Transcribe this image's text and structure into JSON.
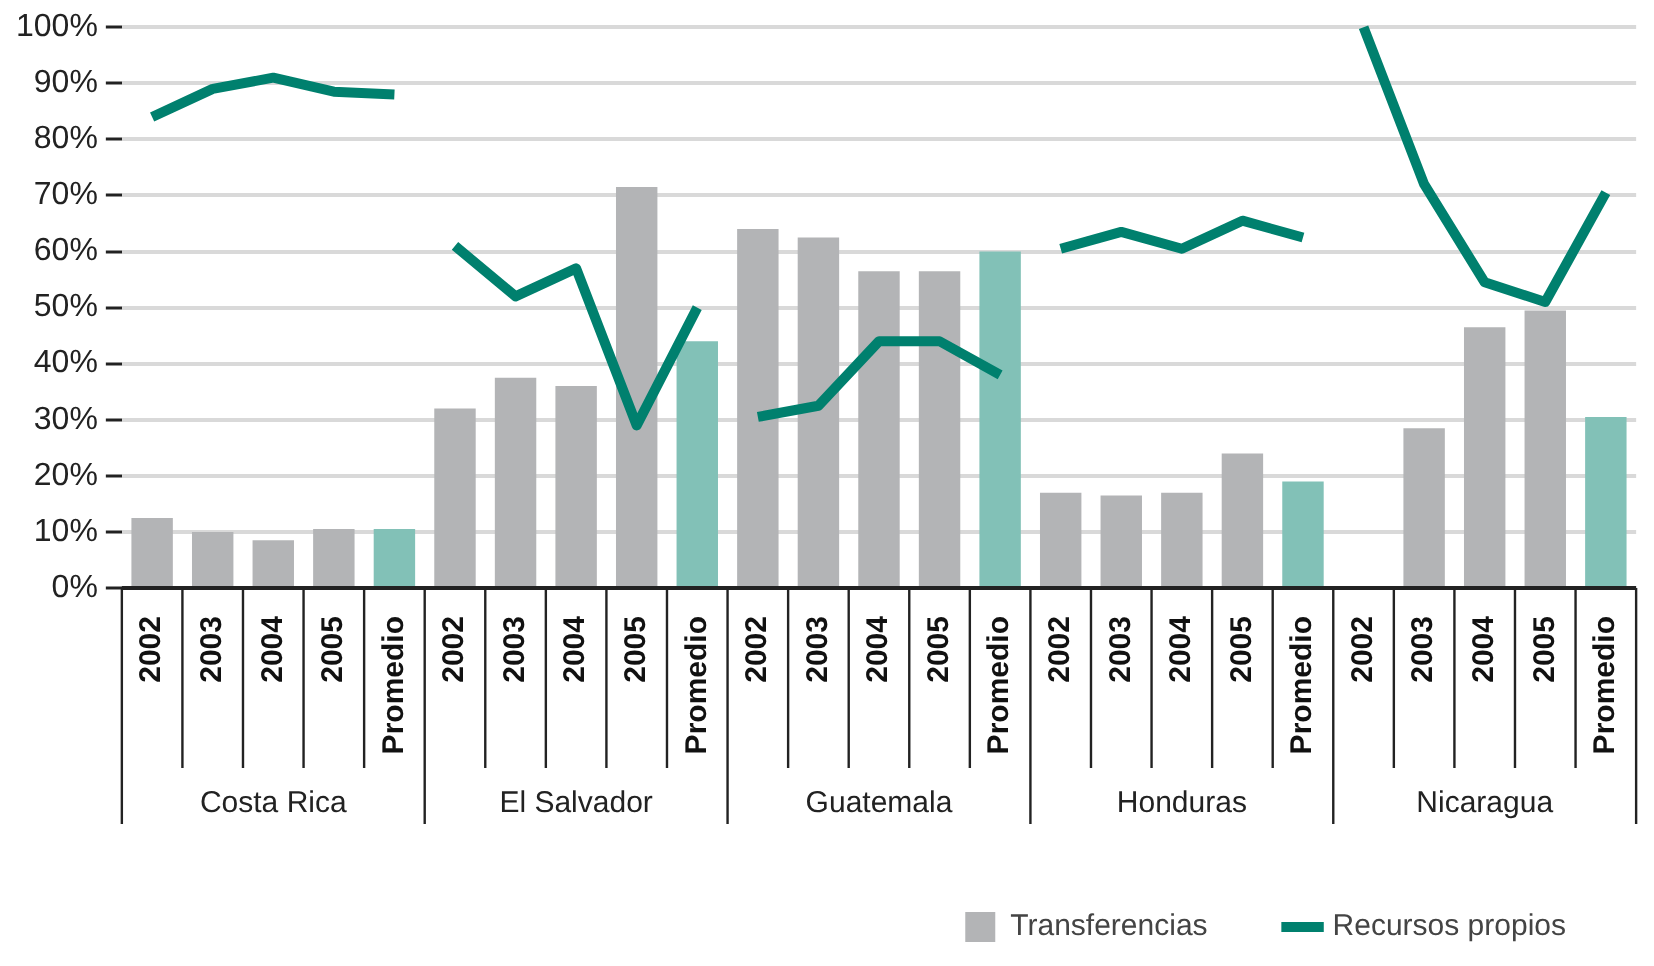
{
  "chart_data": {
    "type": "bar",
    "categories": [
      "2002",
      "2003",
      "2004",
      "2005",
      "Promedio",
      "2002",
      "2003",
      "2004",
      "2005",
      "Promedio",
      "2002",
      "2003",
      "2004",
      "2005",
      "Promedio",
      "2002",
      "2003",
      "2004",
      "2005",
      "Promedio",
      "2002",
      "2003",
      "2004",
      "2005",
      "Promedio"
    ],
    "annotations": [
      "Costa Rica",
      "El Salvador",
      "Guatemala",
      "Honduras",
      "Nicaragua"
    ],
    "series": [
      {
        "name": "Transferencias",
        "color": "#b3b4b6",
        "colors": [
          "#b3b4b6",
          "#b3b4b6",
          "#b3b4b6",
          "#b3b4b6",
          "#82c1b7",
          "#b3b4b6",
          "#b3b4b6",
          "#b3b4b6",
          "#b3b4b6",
          "#82c1b7",
          "#b3b4b6",
          "#b3b4b6",
          "#b3b4b6",
          "#b3b4b6",
          "#82c1b7",
          "#b3b4b6",
          "#b3b4b6",
          "#b3b4b6",
          "#b3b4b6",
          "#82c1b7",
          "#b3b4b6",
          "#b3b4b6",
          "#b3b4b6",
          "#b3b4b6",
          "#82c1b7"
        ],
        "values": [
          12.5,
          10,
          8.5,
          10.5,
          10.5,
          32,
          37.5,
          36,
          71.5,
          44,
          64,
          62.5,
          56.5,
          56.5,
          60,
          17,
          16.5,
          17,
          24,
          19,
          null,
          28.5,
          46.5,
          49.5,
          30.5
        ]
      },
      {
        "name": "Recursos propios",
        "type": "line",
        "color": "#00806e",
        "values": [
          84,
          89,
          91,
          88.5,
          88,
          null,
          null,
          null,
          null,
          null,
          null,
          null,
          null,
          null,
          null,
          null,
          null,
          null,
          null,
          null,
          null,
          null,
          null,
          null,
          null
        ]
      },
      {
        "type": "line",
        "color": "#00806e",
        "values": [
          null,
          null,
          null,
          null,
          null,
          61,
          52,
          57,
          29,
          50,
          null,
          null,
          null,
          null,
          null,
          null,
          null,
          null,
          null,
          null,
          null,
          null,
          null,
          null,
          null
        ]
      },
      {
        "type": "line",
        "color": "#00806e",
        "values": [
          null,
          null,
          null,
          null,
          null,
          null,
          null,
          null,
          null,
          null,
          30.5,
          32.5,
          44,
          44,
          38,
          null,
          null,
          null,
          null,
          null,
          null,
          null,
          null,
          null,
          null
        ]
      },
      {
        "type": "line",
        "color": "#00806e",
        "values": [
          null,
          null,
          null,
          null,
          null,
          null,
          null,
          null,
          null,
          null,
          null,
          null,
          null,
          null,
          null,
          60.5,
          63.5,
          60.5,
          65.5,
          62.5,
          null,
          null,
          null,
          null,
          null
        ]
      },
      {
        "type": "line",
        "color": "#00806e",
        "values": [
          null,
          null,
          null,
          null,
          null,
          null,
          null,
          null,
          null,
          null,
          null,
          null,
          null,
          null,
          null,
          null,
          null,
          null,
          null,
          null,
          100,
          72,
          54.5,
          51,
          70.5
        ]
      }
    ],
    "ylim": [
      0,
      100
    ],
    "yticks": [
      {
        "value": 0,
        "label": "0%"
      },
      {
        "value": 10,
        "label": "10%"
      },
      {
        "value": 20,
        "label": "20%"
      },
      {
        "value": 30,
        "label": "30%"
      },
      {
        "value": 40,
        "label": "40%"
      },
      {
        "value": 50,
        "label": "50%"
      },
      {
        "value": 60,
        "label": "60%"
      },
      {
        "value": 70,
        "label": "70%"
      },
      {
        "value": 80,
        "label": "80%"
      },
      {
        "value": 90,
        "label": "90%"
      },
      {
        "value": 100,
        "label": "100%"
      }
    ],
    "grid": "y",
    "legend": "bottom right",
    "line_style": "solid",
    "marker": "none"
  }
}
